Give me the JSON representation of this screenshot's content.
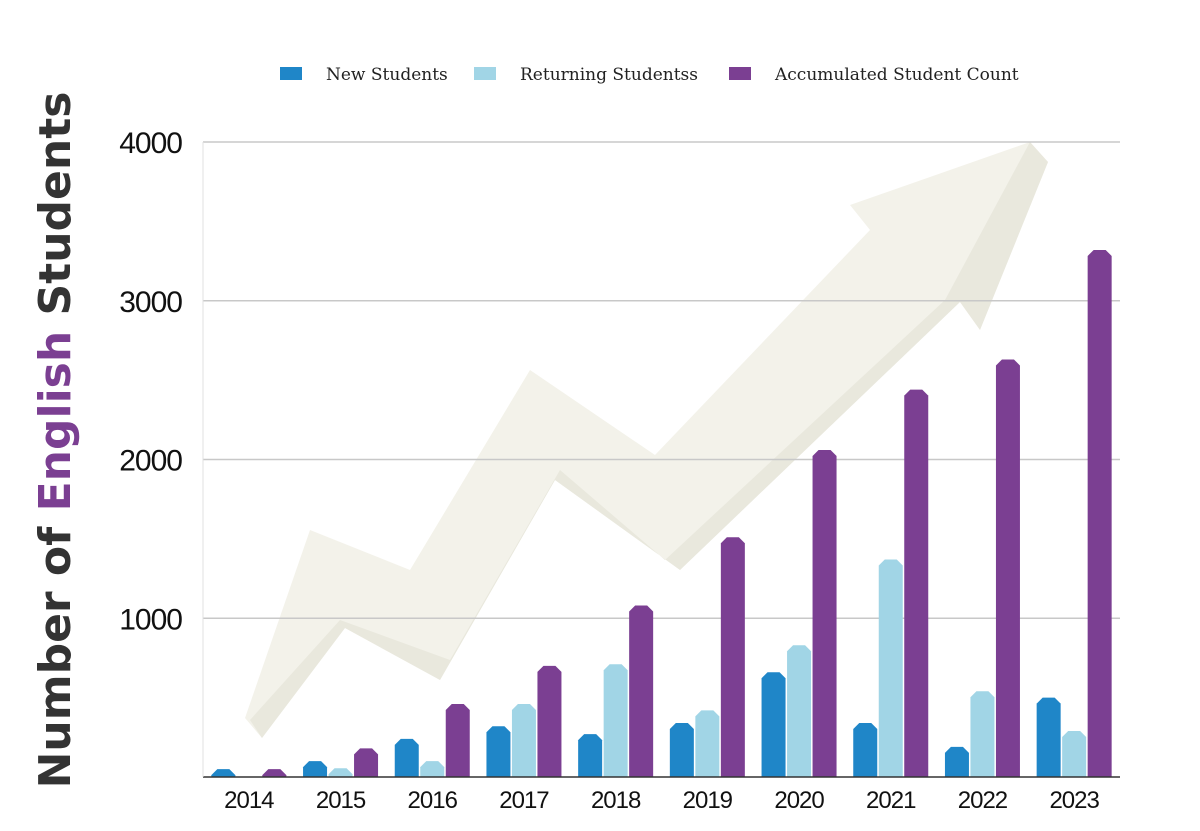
{
  "chart_data": {
    "type": "bar",
    "ylabel_parts": [
      {
        "text": "Number of ",
        "color": "#333333"
      },
      {
        "text": "English",
        "color": "#7b3f92"
      },
      {
        "text": " Students",
        "color": "#333333"
      }
    ],
    "categories": [
      "2014",
      "2015",
      "2016",
      "2017",
      "2018",
      "2019",
      "2020",
      "2021",
      "2022",
      "2023"
    ],
    "series": [
      {
        "name": "New Students",
        "color": "#1f86c8",
        "values": [
          50,
          100,
          240,
          320,
          270,
          340,
          660,
          340,
          190,
          500
        ]
      },
      {
        "name": "Returning Studentss",
        "color": "#a1d5e6",
        "values": [
          0,
          55,
          100,
          460,
          710,
          420,
          830,
          1370,
          540,
          290
        ]
      },
      {
        "name": "Accumulated Student Count",
        "color": "#7b3f92",
        "values": [
          50,
          180,
          460,
          700,
          1080,
          1510,
          2060,
          2440,
          2630,
          3320
        ]
      }
    ],
    "ylim": [
      0,
      4000
    ],
    "yticks": [
      1000,
      2000,
      3000,
      4000
    ],
    "grid": true,
    "legend_position": "top"
  }
}
